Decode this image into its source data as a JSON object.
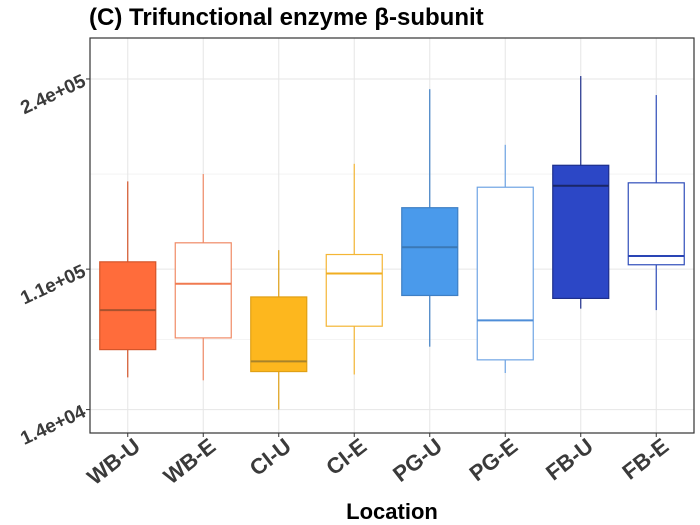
{
  "chart_data": {
    "type": "box",
    "title": "(C) Trifunctional enzyme β-subunit",
    "xlabel": "Location",
    "ylabel": "",
    "ylim": [
      -2000,
      268000
    ],
    "yticks": [
      {
        "value": 14000,
        "label": "1.4e+04"
      },
      {
        "value": 110000,
        "label": "1.1e+05"
      },
      {
        "value": 240000,
        "label": "2.4e+05"
      }
    ],
    "grid": true,
    "categories": [
      "WB-U",
      "WB-E",
      "CI-U",
      "CI-E",
      "PG-U",
      "PG-E",
      "FB-U",
      "FB-E"
    ],
    "boxes": [
      {
        "category": "WB-U",
        "min": 36000,
        "q1": 55000,
        "median": 82000,
        "q3": 115000,
        "max": 170000,
        "fill": "#FF6C3B",
        "stroke": "#D4552A",
        "median_color": "#A8522E"
      },
      {
        "category": "WB-E",
        "min": 34000,
        "q1": 63000,
        "median": 100000,
        "q3": 128000,
        "max": 175000,
        "fill": "#FFFFFF",
        "stroke": "#F08A66",
        "median_color": "#F07A50"
      },
      {
        "category": "CI-U",
        "min": 14000,
        "q1": 40000,
        "median": 47000,
        "q3": 91000,
        "max": 123000,
        "fill": "#FDB71E",
        "stroke": "#E0A015",
        "median_color": "#A8832A"
      },
      {
        "category": "CI-E",
        "min": 38000,
        "q1": 71000,
        "median": 107000,
        "q3": 120000,
        "max": 182000,
        "fill": "#FFFFFF",
        "stroke": "#F4B635",
        "median_color": "#F0AE20"
      },
      {
        "category": "PG-U",
        "min": 57000,
        "q1": 92000,
        "median": 125000,
        "q3": 152000,
        "max": 233000,
        "fill": "#4A9AEB",
        "stroke": "#3E7FC4",
        "median_color": "#3B78B5"
      },
      {
        "category": "PG-E",
        "min": 39000,
        "q1": 48000,
        "median": 75000,
        "q3": 166000,
        "max": 195000,
        "fill": "#FFFFFF",
        "stroke": "#6FA4E4",
        "median_color": "#4E8DD8"
      },
      {
        "category": "FB-U",
        "min": 83000,
        "q1": 90000,
        "median": 167000,
        "q3": 181000,
        "max": 242000,
        "fill": "#2C47C6",
        "stroke": "#1E2F8C",
        "median_color": "#1A2766"
      },
      {
        "category": "FB-E",
        "min": 82000,
        "q1": 113000,
        "median": 119000,
        "q3": 169000,
        "max": 229000,
        "fill": "#FFFFFF",
        "stroke": "#2F4DBA",
        "median_color": "#2A45B5"
      }
    ]
  }
}
